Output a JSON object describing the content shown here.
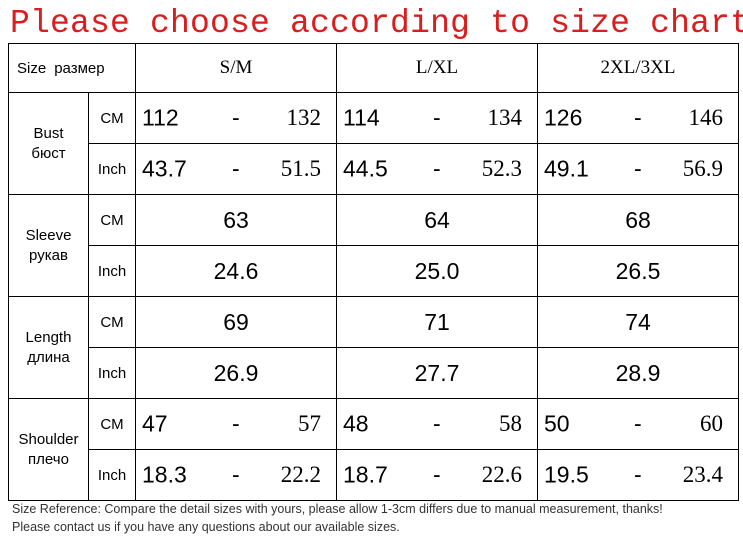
{
  "title": "Please choose according to size chart",
  "header": {
    "label": "Size",
    "label_ru": "размер",
    "sizes": [
      "S/M",
      "L/XL",
      "2XL/3XL"
    ]
  },
  "rows": {
    "bust": {
      "label": "Bust",
      "label_ru": "бюст",
      "cm_unit": "CM",
      "inch_unit": "Inch",
      "cm": [
        {
          "lo": "112",
          "dash": "-",
          "hi": "132"
        },
        {
          "lo": "114",
          "dash": "-",
          "hi": "134"
        },
        {
          "lo": "126",
          "dash": "-",
          "hi": "146"
        }
      ],
      "inch": [
        {
          "lo": "43.7",
          "dash": "-",
          "hi": "51.5"
        },
        {
          "lo": "44.5",
          "dash": "-",
          "hi": "52.3"
        },
        {
          "lo": "49.1",
          "dash": "-",
          "hi": "56.9"
        }
      ]
    },
    "sleeve": {
      "label": "Sleeve",
      "label_ru": "рукав",
      "cm_unit": "CM",
      "inch_unit": "Inch",
      "cm": [
        "63",
        "64",
        "68"
      ],
      "inch": [
        "24.6",
        "25.0",
        "26.5"
      ]
    },
    "length": {
      "label": "Length",
      "label_ru": "длина",
      "cm_unit": "CM",
      "inch_unit": "Inch",
      "cm": [
        "69",
        "71",
        "74"
      ],
      "inch": [
        "26.9",
        "27.7",
        "28.9"
      ]
    },
    "shoulder": {
      "label": "Shoulder",
      "label_ru": "плечо",
      "cm_unit": "CM",
      "inch_unit": "Inch",
      "cm": [
        {
          "lo": "47",
          "dash": "-",
          "hi": "57"
        },
        {
          "lo": "48",
          "dash": "-",
          "hi": "58"
        },
        {
          "lo": "50",
          "dash": "-",
          "hi": "60"
        }
      ],
      "inch": [
        {
          "lo": "18.3",
          "dash": "-",
          "hi": "22.2"
        },
        {
          "lo": "18.7",
          "dash": "-",
          "hi": "22.6"
        },
        {
          "lo": "19.5",
          "dash": "-",
          "hi": "23.4"
        }
      ]
    }
  },
  "footnotes": [
    "Size Reference: Compare the detail sizes with yours, please allow 1-3cm differs due to manual measurement, thanks!",
    "Please contact us if you have any questions about our available sizes."
  ]
}
